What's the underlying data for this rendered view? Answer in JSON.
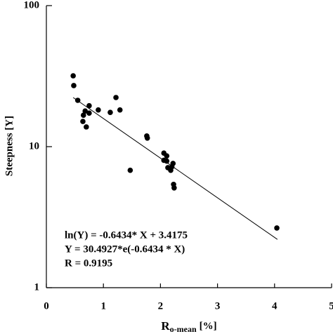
{
  "chart_data": {
    "type": "scatter",
    "log_y": true,
    "color": "#000000",
    "x": [
      0.47,
      0.48,
      0.55,
      1.22,
      0.68,
      0.75,
      0.75,
      0.65,
      0.91,
      0.64,
      0.7,
      1.12,
      1.29,
      1.76,
      1.77,
      1.47,
      2.06,
      2.11,
      2.06,
      2.11,
      2.13,
      2.2,
      2.22,
      2.18,
      2.23,
      2.24,
      4.04
    ],
    "values": [
      31.8,
      27.1,
      21.3,
      22.3,
      17.9,
      19.5,
      17.3,
      16.7,
      18.2,
      15.1,
      13.8,
      17.5,
      18.2,
      11.9,
      11.5,
      6.8,
      9.0,
      8.6,
      8.0,
      7.9,
      7.1,
      7.2,
      7.6,
      6.8,
      5.4,
      5.1,
      2.65
    ],
    "fit": {
      "x": [
        0.47,
        4.05
      ],
      "values": [
        22.3,
        2.2
      ]
    },
    "xlim": [
      0,
      5
    ],
    "xticks": [
      0,
      1,
      2,
      3,
      4,
      5
    ],
    "ylim": [
      1,
      100
    ],
    "yticks": [
      1,
      10,
      100
    ],
    "xlabel": {
      "main": "R",
      "sub": "o-mean",
      "unit": "[%]"
    },
    "ylabel": "Steepness [Y]",
    "annotations": [
      "ln(Y) = -0.6434* X + 3.4175",
      "Y = 30.4927*e(-0.6434 * X)",
      "R = 0.9195"
    ]
  }
}
